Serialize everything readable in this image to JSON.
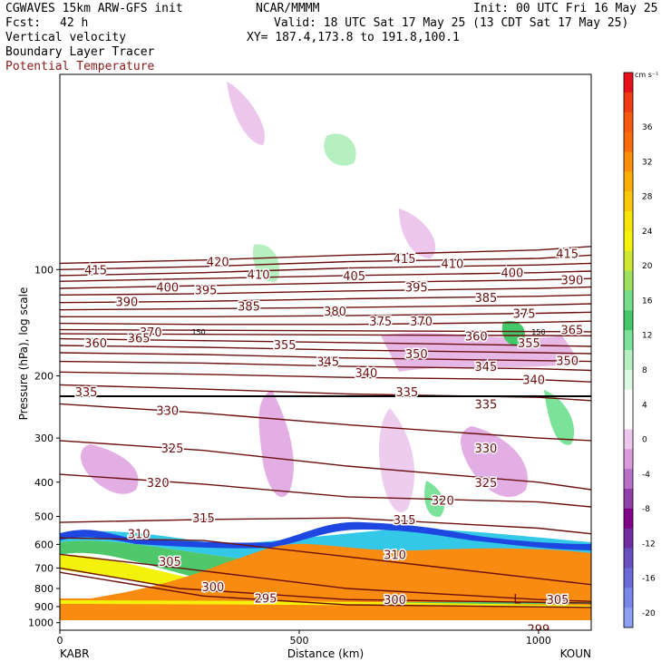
{
  "header": {
    "model": "CGWAVES 15km ARW-GFS init",
    "forecast_label": "Fcst:",
    "forecast_hours": "42 h",
    "org": "NCAR/MMMM",
    "init": "Init: 00 UTC Fri 16 May 25",
    "valid": "Valid: 18 UTC Sat 17 May 25 (13 CDT Sat 17 May 25)",
    "xy": "XY= 187.4,173.8 to 191.8,100.1",
    "fields": [
      "Vertical velocity",
      "Boundary Layer Tracer",
      "Potential Temperature"
    ],
    "field_colors": [
      "#000000",
      "#000000",
      "#8b1a1a"
    ]
  },
  "chart_data": {
    "type": "heatmap",
    "title": "",
    "xlabel": "Distance (km)",
    "ylabel": "Pressure (hPa), log scale",
    "x_ticks": [
      0,
      500,
      1000
    ],
    "xlim": [
      0,
      1110
    ],
    "y_ticks": [
      100,
      200,
      300,
      400,
      500,
      600,
      700,
      800,
      900,
      1000
    ],
    "ylim": [
      1050,
      28
    ],
    "y_scale": "log",
    "x_endpoint_labels": [
      "KABR",
      "KOUN"
    ],
    "colorbar": {
      "unit": "cm s⁻¹",
      "labels": [
        36,
        32,
        28,
        24,
        20,
        16,
        12,
        8,
        4,
        0,
        -4,
        -8,
        -12,
        -16,
        -20
      ],
      "colors": [
        "#e8101a",
        "#f03c14",
        "#f65a10",
        "#f86c0e",
        "#fa8e0a",
        "#fbad06",
        "#fcc804",
        "#f6e404",
        "#f4f20a",
        "#cde832",
        "#9fe060",
        "#75de8a",
        "#45c86a",
        "#7be29a",
        "#b6f0c0",
        "#dcf8e2",
        "#ffffff",
        "#ffffff",
        "#ecc6ec",
        "#dc9adc",
        "#b870c8",
        "#9040a8",
        "#800088",
        "#702ca0",
        "#6850c0",
        "#6a6ad8",
        "#7a86ea",
        "#8ca0f4"
      ]
    },
    "isentropes": [
      {
        "value": 299,
        "points": [
          [
            990,
            1050
          ]
        ]
      },
      {
        "value": 295,
        "points": [
          [
            0,
            720
          ],
          [
            300,
            840
          ],
          [
            600,
            890
          ],
          [
            1110,
            905
          ]
        ]
      },
      {
        "value": 300,
        "points": [
          [
            0,
            700
          ],
          [
            250,
            800
          ],
          [
            600,
            860
          ],
          [
            1110,
            880
          ]
        ]
      },
      {
        "value": 305,
        "points": [
          [
            0,
            640
          ],
          [
            250,
            700
          ],
          [
            600,
            800
          ],
          [
            1000,
            860
          ],
          [
            1110,
            870
          ]
        ]
      },
      {
        "value": 310,
        "points": [
          [
            0,
            575
          ],
          [
            300,
            585
          ],
          [
            600,
            650
          ],
          [
            1000,
            750
          ],
          [
            1110,
            780
          ]
        ]
      },
      {
        "value": 315,
        "points": [
          [
            0,
            520
          ],
          [
            300,
            510
          ],
          [
            600,
            505
          ],
          [
            1000,
            540
          ],
          [
            1110,
            560
          ]
        ]
      },
      {
        "value": 320,
        "points": [
          [
            0,
            380
          ],
          [
            300,
            405
          ],
          [
            600,
            440
          ],
          [
            1000,
            455
          ],
          [
            1110,
            470
          ]
        ]
      },
      {
        "value": 325,
        "points": [
          [
            0,
            305
          ],
          [
            300,
            325
          ],
          [
            600,
            360
          ],
          [
            1000,
            400
          ],
          [
            1110,
            420
          ]
        ]
      },
      {
        "value": 330,
        "points": [
          [
            0,
            240
          ],
          [
            300,
            255
          ],
          [
            600,
            275
          ],
          [
            1000,
            300
          ],
          [
            1110,
            305
          ]
        ]
      },
      {
        "value": 335,
        "points": [
          [
            0,
            212
          ],
          [
            300,
            218
          ],
          [
            600,
            225
          ],
          [
            1000,
            230
          ],
          [
            1110,
            235
          ]
        ]
      },
      {
        "value": 340,
        "points": [
          [
            0,
            195
          ],
          [
            300,
            198
          ],
          [
            600,
            202
          ],
          [
            1000,
            205
          ],
          [
            1110,
            208
          ]
        ]
      },
      {
        "value": 345,
        "points": [
          [
            0,
            182
          ],
          [
            300,
            184
          ],
          [
            600,
            188
          ],
          [
            1000,
            191
          ],
          [
            1110,
            193
          ]
        ]
      },
      {
        "value": 350,
        "points": [
          [
            0,
            172
          ],
          [
            300,
            174
          ],
          [
            600,
            178
          ],
          [
            1000,
            181
          ],
          [
            1110,
            182
          ]
        ]
      },
      {
        "value": 355,
        "points": [
          [
            0,
            164
          ],
          [
            300,
            166
          ],
          [
            600,
            169
          ],
          [
            1000,
            172
          ],
          [
            1110,
            173
          ]
        ]
      },
      {
        "value": 360,
        "points": [
          [
            0,
            157
          ],
          [
            300,
            159
          ],
          [
            600,
            161
          ],
          [
            1000,
            164
          ],
          [
            1110,
            165
          ]
        ]
      },
      {
        "value": 365,
        "points": [
          [
            0,
            152
          ],
          [
            1110,
            154
          ]
        ]
      },
      {
        "value": 370,
        "points": [
          [
            0,
            148
          ],
          [
            1110,
            150
          ]
        ]
      },
      {
        "value": 375,
        "points": [
          [
            0,
            142
          ],
          [
            300,
            143
          ],
          [
            600,
            143
          ],
          [
            1000,
            141
          ],
          [
            1110,
            140
          ]
        ]
      },
      {
        "value": 380,
        "points": [
          [
            0,
            136
          ],
          [
            300,
            136
          ],
          [
            600,
            135
          ],
          [
            1000,
            133
          ],
          [
            1110,
            132
          ]
        ]
      },
      {
        "value": 385,
        "points": [
          [
            0,
            130
          ],
          [
            300,
            129
          ],
          [
            600,
            128
          ],
          [
            1000,
            126
          ],
          [
            1110,
            125
          ]
        ]
      },
      {
        "value": 390,
        "points": [
          [
            0,
            124
          ],
          [
            300,
            123
          ],
          [
            600,
            121
          ],
          [
            1000,
            119
          ],
          [
            1110,
            118
          ]
        ]
      },
      {
        "value": 395,
        "points": [
          [
            0,
            118
          ],
          [
            300,
            117
          ],
          [
            600,
            115
          ],
          [
            1000,
            113
          ],
          [
            1110,
            112
          ]
        ]
      },
      {
        "value": 400,
        "points": [
          [
            0,
            113
          ],
          [
            300,
            111
          ],
          [
            600,
            109
          ],
          [
            1000,
            107
          ],
          [
            1110,
            106
          ]
        ]
      },
      {
        "value": 405,
        "points": [
          [
            0,
            108
          ],
          [
            300,
            106
          ],
          [
            600,
            104
          ],
          [
            1000,
            102
          ],
          [
            1110,
            101
          ]
        ]
      },
      {
        "value": 410,
        "points": [
          [
            0,
            104
          ],
          [
            300,
            102
          ],
          [
            600,
            99
          ],
          [
            1000,
            97
          ],
          [
            1110,
            96
          ]
        ]
      },
      {
        "value": 415,
        "points": [
          [
            0,
            100
          ],
          [
            300,
            98
          ],
          [
            600,
            95
          ],
          [
            1000,
            93
          ],
          [
            1110,
            91
          ]
        ]
      },
      {
        "value": 420,
        "points": [
          [
            0,
            96
          ],
          [
            300,
            94
          ],
          [
            600,
            91
          ],
          [
            1000,
            88
          ],
          [
            1110,
            86
          ]
        ]
      }
    ],
    "isentrope_labels": [
      {
        "text": "415",
        "x": 75,
        "p": 100
      },
      {
        "text": "420",
        "x": 330,
        "p": 95
      },
      {
        "text": "415",
        "x": 720,
        "p": 93
      },
      {
        "text": "410",
        "x": 820,
        "p": 96
      },
      {
        "text": "415",
        "x": 1060,
        "p": 90
      },
      {
        "text": "410",
        "x": 415,
        "p": 103
      },
      {
        "text": "405",
        "x": 615,
        "p": 104
      },
      {
        "text": "400",
        "x": 945,
        "p": 102
      },
      {
        "text": "400",
        "x": 225,
        "p": 112
      },
      {
        "text": "395",
        "x": 305,
        "p": 114
      },
      {
        "text": "395",
        "x": 745,
        "p": 112
      },
      {
        "text": "390",
        "x": 1070,
        "p": 107
      },
      {
        "text": "390",
        "x": 140,
        "p": 123
      },
      {
        "text": "385",
        "x": 395,
        "p": 127
      },
      {
        "text": "385",
        "x": 890,
        "p": 120
      },
      {
        "text": "380",
        "x": 575,
        "p": 131
      },
      {
        "text": "375",
        "x": 670,
        "p": 140
      },
      {
        "text": "370",
        "x": 755,
        "p": 140
      },
      {
        "text": "375",
        "x": 970,
        "p": 133
      },
      {
        "text": "370",
        "x": 190,
        "p": 150
      },
      {
        "text": "365",
        "x": 165,
        "p": 156
      },
      {
        "text": "360",
        "x": 75,
        "p": 161
      },
      {
        "text": "365",
        "x": 1070,
        "p": 148
      },
      {
        "text": "360",
        "x": 870,
        "p": 154
      },
      {
        "text": "355",
        "x": 470,
        "p": 163
      },
      {
        "text": "355",
        "x": 980,
        "p": 161
      },
      {
        "text": "345",
        "x": 560,
        "p": 182
      },
      {
        "text": "350",
        "x": 745,
        "p": 173
      },
      {
        "text": "350",
        "x": 1060,
        "p": 181
      },
      {
        "text": "340",
        "x": 640,
        "p": 196
      },
      {
        "text": "345",
        "x": 890,
        "p": 188
      },
      {
        "text": "340",
        "x": 990,
        "p": 205
      },
      {
        "text": "335",
        "x": 55,
        "p": 222
      },
      {
        "text": "335",
        "x": 725,
        "p": 222
      },
      {
        "text": "335",
        "x": 890,
        "p": 240
      },
      {
        "text": "330",
        "x": 225,
        "p": 250
      },
      {
        "text": "330",
        "x": 890,
        "p": 320
      },
      {
        "text": "325",
        "x": 235,
        "p": 320
      },
      {
        "text": "325",
        "x": 890,
        "p": 400
      },
      {
        "text": "320",
        "x": 205,
        "p": 400
      },
      {
        "text": "320",
        "x": 800,
        "p": 450
      },
      {
        "text": "315",
        "x": 300,
        "p": 505
      },
      {
        "text": "315",
        "x": 720,
        "p": 510
      },
      {
        "text": "310",
        "x": 165,
        "p": 560
      },
      {
        "text": "310",
        "x": 700,
        "p": 640
      },
      {
        "text": "305",
        "x": 230,
        "p": 670
      },
      {
        "text": "305",
        "x": 1040,
        "p": 860
      },
      {
        "text": "300",
        "x": 320,
        "p": 790
      },
      {
        "text": "300",
        "x": 700,
        "p": 860
      },
      {
        "text": "295",
        "x": 430,
        "p": 850
      },
      {
        "text": "299",
        "x": 1000,
        "p": 1040
      }
    ],
    "annotations": [
      {
        "text": "150",
        "x": 290,
        "p": 150
      },
      {
        "text": "150",
        "x": 1000,
        "p": 150
      },
      {
        "text": "L",
        "x": 955,
        "p": 850
      }
    ]
  }
}
